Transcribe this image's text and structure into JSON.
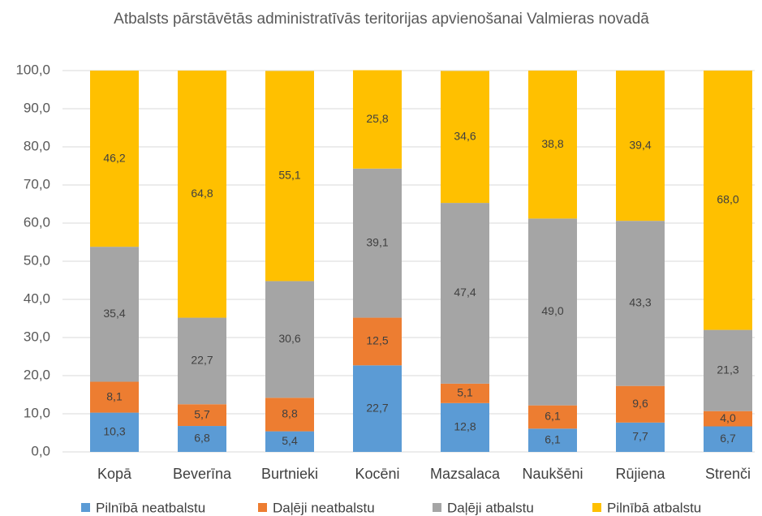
{
  "chart_data": {
    "type": "stacked_bar",
    "title": "Atbalsts pārstāvētās administratīvās teritorijas apvienošanai  Valmieras novadā",
    "categories": [
      "Kopā",
      "Beverīna",
      "Burtnieki",
      "Kocēni",
      "Mazsalaca",
      "Naukšēni",
      "Rūjiena",
      "Strenči"
    ],
    "series": [
      {
        "name": "Pilnībā neatbalstu",
        "color": "#5b9bd5",
        "values": [
          10.3,
          6.8,
          5.4,
          22.7,
          12.8,
          6.1,
          7.7,
          6.7
        ],
        "value_labels": [
          "10,3",
          "6,8",
          "5,4",
          "22,7",
          "12,8",
          "6,1",
          "7,7",
          "6,7"
        ]
      },
      {
        "name": "Daļēji neatbalstu",
        "color": "#ed7d31",
        "values": [
          8.1,
          5.7,
          8.8,
          12.5,
          5.1,
          6.1,
          9.6,
          4.0
        ],
        "value_labels": [
          "8,1",
          "5,7",
          "8,8",
          "12,5",
          "5,1",
          "6,1",
          "9,6",
          "4,0"
        ]
      },
      {
        "name": "Daļēji atbalstu",
        "color": "#a5a5a5",
        "values": [
          35.4,
          22.7,
          30.6,
          39.1,
          47.4,
          49.0,
          43.3,
          21.3
        ],
        "value_labels": [
          "35,4",
          "22,7",
          "30,6",
          "39,1",
          "47,4",
          "49,0",
          "43,3",
          "21,3"
        ]
      },
      {
        "name": "Pilnībā atbalstu",
        "color": "#ffc000",
        "values": [
          46.2,
          64.8,
          55.1,
          25.8,
          34.6,
          38.8,
          39.4,
          68.0
        ],
        "value_labels": [
          "46,2",
          "64,8",
          "55,1",
          "25,8",
          "34,6",
          "38,8",
          "39,4",
          "68,0"
        ]
      }
    ],
    "ylim": [
      0,
      100
    ],
    "yticks": [
      {
        "value": 0,
        "label": "0,0"
      },
      {
        "value": 10,
        "label": "10,0"
      },
      {
        "value": 20,
        "label": "20,0"
      },
      {
        "value": 30,
        "label": "30,0"
      },
      {
        "value": 40,
        "label": "40,0"
      },
      {
        "value": 50,
        "label": "50,0"
      },
      {
        "value": 60,
        "label": "60,0"
      },
      {
        "value": 70,
        "label": "70,0"
      },
      {
        "value": 80,
        "label": "80,0"
      },
      {
        "value": 90,
        "label": "90,0"
      },
      {
        "value": 100,
        "label": "100,0"
      }
    ],
    "grid": true,
    "legend": "bottom"
  }
}
